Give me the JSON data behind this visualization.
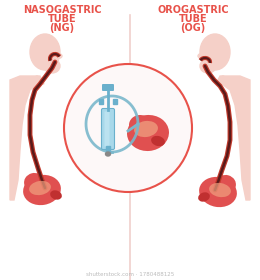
{
  "bg_color": "#ffffff",
  "left_title_lines": [
    "NASOGASTRIC",
    "TUBE",
    "(NG)"
  ],
  "right_title_lines": [
    "OROGASTRIC",
    "TUBE",
    "(OG)"
  ],
  "title_color": "#e8524a",
  "title_fontsize": 7.0,
  "divider_color": "#f0d0cc",
  "body_fill": "#f5d0c8",
  "tube_color_outer": "#c0392b",
  "tube_color_inner": "#5a1a1a",
  "stomach_fill": "#e05050",
  "stomach_light": "#f0a080",
  "stomach_dark": "#c03030",
  "circle_fill": "#fdf8f8",
  "circle_edge": "#e8524a",
  "syringe_body": "#a8d8ea",
  "syringe_dark": "#6ab0cc",
  "syringe_light": "#c8eaf5",
  "tube_loop_color": "#7ab8cc",
  "watermark_color": "#bbbbbb",
  "watermark_text": "shutterstock.com · 1780488125"
}
